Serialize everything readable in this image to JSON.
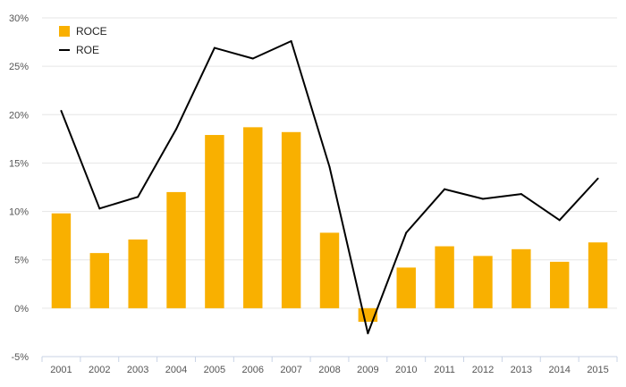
{
  "chart_data": {
    "type": "bar",
    "categories": [
      "2001",
      "2002",
      "2003",
      "2004",
      "2005",
      "2006",
      "2007",
      "2008",
      "2009",
      "2010",
      "2011",
      "2012",
      "2013",
      "2014",
      "2015"
    ],
    "series": [
      {
        "name": "ROCE",
        "type": "bar",
        "color": "#F9B000",
        "values": [
          9.8,
          5.7,
          7.1,
          12.0,
          17.9,
          18.7,
          18.2,
          7.8,
          -1.4,
          4.2,
          6.4,
          5.4,
          6.1,
          4.8,
          6.8
        ]
      },
      {
        "name": "ROE",
        "type": "line",
        "color": "#000000",
        "values": [
          20.4,
          10.3,
          11.5,
          18.5,
          26.9,
          25.8,
          27.6,
          14.6,
          -2.6,
          7.8,
          12.3,
          11.3,
          11.8,
          9.1,
          13.4
        ]
      }
    ],
    "y_ticks": [
      "-5%",
      "0%",
      "5%",
      "10%",
      "15%",
      "20%",
      "25%",
      "30%"
    ],
    "ylim": [
      -5,
      30
    ],
    "grid": true,
    "legend_position": "top-left"
  }
}
